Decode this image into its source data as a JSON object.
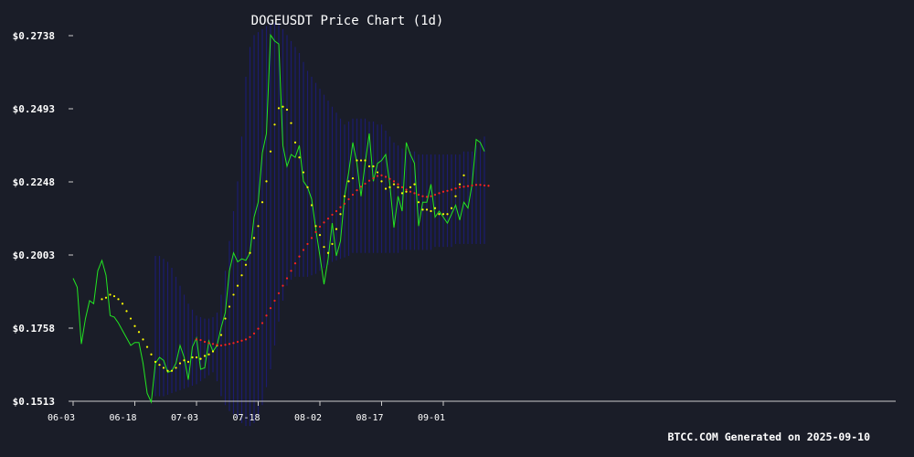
{
  "chart_data": {
    "type": "line",
    "title": "DOGEUSDT Price Chart (1d)",
    "footer": "BTCC.COM Generated on 2025-09-10",
    "xlabel": "",
    "ylabel": "",
    "ylim": [
      0.1513,
      0.2738
    ],
    "y_ticks": [
      "$0.2738",
      "$0.2493",
      "$0.2248",
      "$0.2003",
      "$0.1758",
      "$0.1513"
    ],
    "x_ticks": [
      {
        "label": "06-03",
        "index": 0
      },
      {
        "label": "06-18",
        "index": 15
      },
      {
        "label": "07-03",
        "index": 30
      },
      {
        "label": "07-18",
        "index": 45
      },
      {
        "label": "08-02",
        "index": 60
      },
      {
        "label": "08-17",
        "index": 75
      },
      {
        "label": "09-01",
        "index": 90
      }
    ],
    "grid": false,
    "colors": {
      "background": "#1a1d28",
      "price": "#22e622",
      "ma_short": "#ffff00",
      "ma_long": "#ff2222",
      "band": "#1c1c6e",
      "text": "#ffffff",
      "axis": "#cccccc"
    },
    "series": [
      {
        "key": "price",
        "values": [
          0.1925,
          0.1895,
          0.1705,
          0.179,
          0.185,
          0.184,
          0.195,
          0.1985,
          0.1935,
          0.18,
          0.1795,
          0.1775,
          0.175,
          0.1725,
          0.17,
          0.171,
          0.171,
          0.164,
          0.154,
          0.151,
          0.164,
          0.166,
          0.165,
          0.161,
          0.1615,
          0.164,
          0.17,
          0.166,
          0.1585,
          0.1695,
          0.1725,
          0.162,
          0.1625,
          0.1715,
          0.168,
          0.17,
          0.176,
          0.181,
          0.195,
          0.201,
          0.198,
          0.199,
          0.1985,
          0.201,
          0.213,
          0.218,
          0.2345,
          0.241,
          0.274,
          0.272,
          0.271,
          0.237,
          0.23,
          0.234,
          0.233,
          0.237,
          0.225,
          0.223,
          0.219,
          0.209,
          0.2,
          0.1905,
          0.199,
          0.211,
          0.2,
          0.205,
          0.22,
          0.228,
          0.238,
          0.231,
          0.22,
          0.231,
          0.241,
          0.225,
          0.231,
          0.232,
          0.234,
          0.224,
          0.2095,
          0.22,
          0.215,
          0.238,
          0.234,
          0.231,
          0.21,
          0.218,
          0.218,
          0.224,
          0.213,
          0.215,
          0.213,
          0.211,
          0.214,
          0.217,
          0.212,
          0.218,
          0.216,
          0.224,
          0.239,
          0.238,
          0.235
        ]
      },
      {
        "key": "ma_short",
        "start_index": 7,
        "values": [
          0.1855,
          0.186,
          0.187,
          0.1865,
          0.1855,
          0.184,
          0.1815,
          0.179,
          0.1765,
          0.1745,
          0.172,
          0.1695,
          0.167,
          0.1645,
          0.1635,
          0.1625,
          0.1615,
          0.1615,
          0.1625,
          0.164,
          0.165,
          0.1645,
          0.166,
          0.166,
          0.1655,
          0.1665,
          0.167,
          0.168,
          0.17,
          0.1735,
          0.179,
          0.183,
          0.187,
          0.19,
          0.1935,
          0.197,
          0.201,
          0.206,
          0.21,
          0.218,
          0.225,
          0.235,
          0.244,
          0.2495,
          0.25,
          0.249,
          0.2445,
          0.238,
          0.233,
          0.228,
          0.223,
          0.217,
          0.21,
          0.207,
          0.203,
          0.201,
          0.204,
          0.209,
          0.214,
          0.22,
          0.225,
          0.226,
          0.232,
          0.232,
          0.232,
          0.23,
          0.23,
          0.228,
          0.225,
          0.2225,
          0.223,
          0.224,
          0.223,
          0.221,
          0.2215,
          0.223,
          0.224,
          0.218,
          0.2155,
          0.2155,
          0.215,
          0.216,
          0.214,
          0.214,
          0.214,
          0.216,
          0.22,
          0.224,
          0.227
        ]
      },
      {
        "key": "ma_long",
        "start_index": 30,
        "values": [
          0.172,
          0.1718,
          0.1712,
          0.1708,
          0.1705,
          0.1702,
          0.17,
          0.1702,
          0.1705,
          0.1708,
          0.1712,
          0.1716,
          0.172,
          0.1728,
          0.174,
          0.1756,
          0.1775,
          0.18,
          0.1825,
          0.185,
          0.1875,
          0.19,
          0.1925,
          0.195,
          0.1975,
          0.1998,
          0.202,
          0.204,
          0.206,
          0.208,
          0.2098,
          0.2112,
          0.2125,
          0.2138,
          0.215,
          0.2163,
          0.2175,
          0.219,
          0.2205,
          0.222,
          0.2232,
          0.2242,
          0.2252,
          0.226,
          0.2268,
          0.227,
          0.2265,
          0.2258,
          0.225,
          0.224,
          0.223,
          0.2222,
          0.2215,
          0.221,
          0.2205,
          0.22,
          0.2198,
          0.22,
          0.2205,
          0.221,
          0.2215,
          0.2218,
          0.2222,
          0.2226,
          0.223,
          0.2232,
          0.2234,
          0.2236,
          0.2238,
          0.2238,
          0.2236,
          0.2235
        ]
      }
    ],
    "band": {
      "start_index": 20,
      "upper": [
        0.2,
        0.2,
        0.199,
        0.198,
        0.196,
        0.193,
        0.19,
        0.187,
        0.184,
        0.182,
        0.18,
        0.1795,
        0.179,
        0.179,
        0.1795,
        0.181,
        0.187,
        0.195,
        0.205,
        0.215,
        0.225,
        0.24,
        0.26,
        0.27,
        0.274,
        0.275,
        0.276,
        0.277,
        0.278,
        0.278,
        0.278,
        0.276,
        0.274,
        0.272,
        0.27,
        0.268,
        0.265,
        0.262,
        0.26,
        0.258,
        0.256,
        0.254,
        0.252,
        0.25,
        0.248,
        0.246,
        0.244,
        0.245,
        0.246,
        0.246,
        0.246,
        0.246,
        0.245,
        0.245,
        0.244,
        0.244,
        0.242,
        0.24,
        0.238,
        0.237,
        0.236,
        0.235,
        0.235,
        0.235,
        0.234,
        0.234,
        0.234,
        0.234,
        0.234,
        0.234,
        0.234,
        0.234,
        0.234,
        0.234,
        0.234,
        0.235,
        0.235,
        0.235,
        0.237,
        0.239,
        0.24
      ],
      "lower": [
        0.153,
        0.153,
        0.153,
        0.1535,
        0.154,
        0.1545,
        0.155,
        0.1555,
        0.156,
        0.1565,
        0.157,
        0.158,
        0.159,
        0.16,
        0.161,
        0.158,
        0.153,
        0.15,
        0.148,
        0.147,
        0.146,
        0.144,
        0.143,
        0.143,
        0.144,
        0.146,
        0.15,
        0.156,
        0.162,
        0.17,
        0.178,
        0.185,
        0.19,
        0.192,
        0.193,
        0.193,
        0.193,
        0.193,
        0.1935,
        0.194,
        0.195,
        0.196,
        0.197,
        0.198,
        0.1985,
        0.199,
        0.1995,
        0.2,
        0.201,
        0.201,
        0.201,
        0.201,
        0.201,
        0.201,
        0.201,
        0.201,
        0.201,
        0.201,
        0.201,
        0.201,
        0.202,
        0.202,
        0.202,
        0.202,
        0.202,
        0.202,
        0.202,
        0.202,
        0.203,
        0.203,
        0.203,
        0.203,
        0.203,
        0.204,
        0.204,
        0.204,
        0.204,
        0.204,
        0.204,
        0.204,
        0.204
      ]
    }
  }
}
